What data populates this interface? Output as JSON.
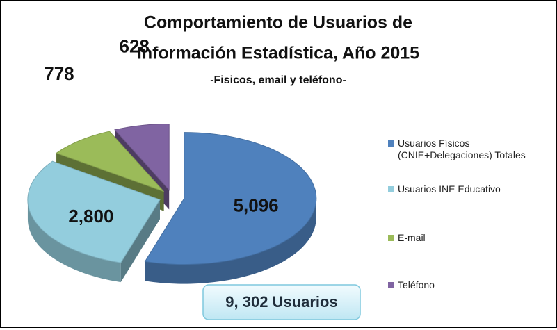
{
  "chart_data": {
    "type": "pie3d",
    "title": [
      "Comportamiento de Usuarios de",
      "Información Estadística,  Año 2015"
    ],
    "subtitle": "-Fisicos, email y teléfono-",
    "categories": [
      "Usuarios Físicos (CNIE+Delegaciones) Totales",
      "Usuarios INE Educativo",
      "E-mail",
      "Teléfono"
    ],
    "values": [
      5096,
      2800,
      778,
      628
    ],
    "value_labels": [
      "5,096",
      "2,800",
      "778",
      "628"
    ],
    "colors": [
      "#4f81bd",
      "#93cddd",
      "#9bbb59",
      "#8064a2"
    ],
    "annotation": "9, 302 Usuarios",
    "legend": "right"
  }
}
